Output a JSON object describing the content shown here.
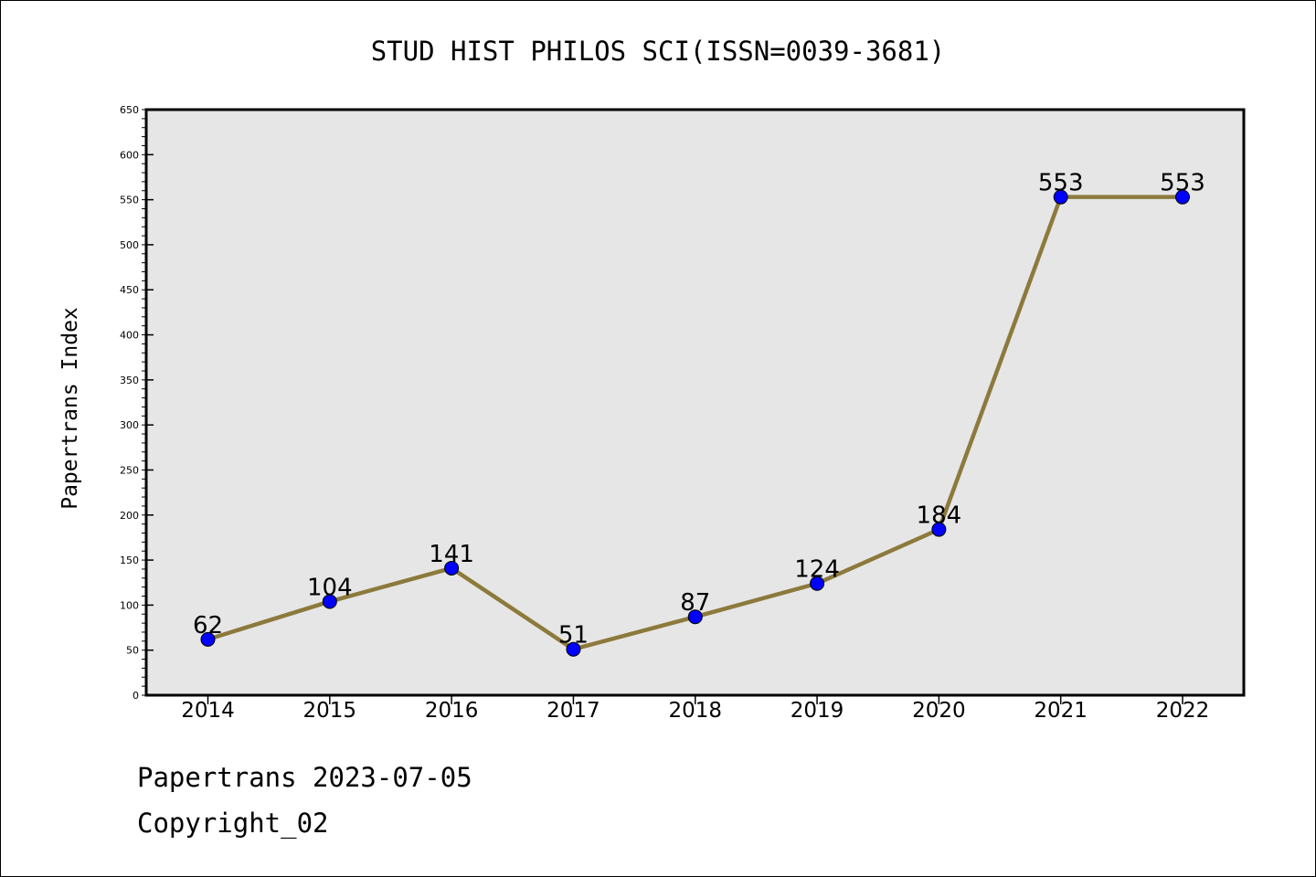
{
  "chart_data": {
    "type": "line",
    "title": "STUD HIST PHILOS SCI(ISSN=0039-3681)",
    "xlabel": "",
    "ylabel": "Papertrans Index",
    "categories": [
      "2014",
      "2015",
      "2016",
      "2017",
      "2018",
      "2019",
      "2020",
      "2021",
      "2022"
    ],
    "series": [
      {
        "values": [
          62,
          104,
          141,
          51,
          87,
          124,
          184,
          553,
          553
        ]
      }
    ],
    "ylim": [
      0,
      650
    ],
    "yticks": [
      0,
      50,
      100,
      150,
      200,
      250,
      300,
      350,
      400,
      450,
      500,
      550,
      600,
      650
    ],
    "grid": false,
    "legend": "none",
    "data_labels": true,
    "colors": {
      "line": "#8c7a3c",
      "marker": "#0000ff",
      "plot_background": "#e6e6e6"
    }
  },
  "footer": {
    "source": "Papertrans 2023-07-05",
    "copyright": "Copyright_02"
  }
}
